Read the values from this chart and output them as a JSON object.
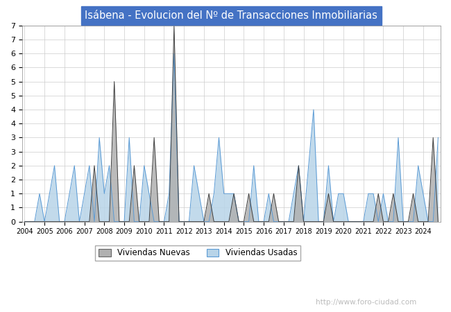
{
  "title": "Isábena - Evolucion del Nº de Transacciones Inmobiliarias",
  "title_color": "#ffffff",
  "title_bg_color": "#4472c4",
  "ylim": [
    0,
    7
  ],
  "ytick_vals": [
    0,
    0.5,
    1,
    1.5,
    2,
    2.5,
    3,
    3.5,
    4,
    4.5,
    5,
    5.5,
    6,
    6.5,
    7
  ],
  "ytick_labels": [
    "0",
    "1",
    "1",
    "2",
    "2",
    "3",
    "3",
    "4",
    "4",
    "5",
    "5",
    "6",
    "6",
    "7",
    "7"
  ],
  "color_nuevas": "#b0b0b0",
  "color_usadas": "#b8d4e8",
  "color_nuevas_line": "#404040",
  "color_usadas_line": "#5b9bd5",
  "watermark": "http://www.foro-ciudad.com",
  "legend_labels": [
    "Viviendas Nuevas",
    "Viviendas Usadas"
  ],
  "quarters_per_year": 4,
  "start_year": 2004,
  "end_year": 2024,
  "nuevas": [
    0,
    0,
    0,
    0,
    0,
    0,
    0,
    0,
    0,
    0,
    0,
    0,
    0,
    0,
    2,
    0,
    0,
    0,
    5,
    0,
    0,
    0,
    2,
    0,
    0,
    0,
    3,
    0,
    0,
    0,
    7,
    0,
    0,
    0,
    0,
    0,
    0,
    1,
    0,
    0,
    0,
    0,
    1,
    0,
    0,
    1,
    0,
    0,
    0,
    0,
    1,
    0,
    0,
    0,
    0,
    2,
    0,
    0,
    0,
    0,
    0,
    1,
    0,
    0,
    0,
    0,
    0,
    0,
    0,
    0,
    0,
    1,
    0,
    0,
    1,
    0,
    0,
    0,
    1,
    0,
    0,
    0,
    3,
    0
  ],
  "usadas": [
    0,
    0,
    0,
    1,
    0,
    1,
    2,
    0,
    0,
    1,
    2,
    0,
    1,
    2,
    0,
    3,
    1,
    2,
    0,
    0,
    0,
    3,
    0,
    0,
    2,
    1,
    0,
    0,
    0,
    1,
    6,
    0,
    0,
    0,
    2,
    1,
    0,
    0,
    1,
    3,
    1,
    1,
    1,
    0,
    0,
    0,
    2,
    0,
    0,
    1,
    0,
    0,
    0,
    0,
    1,
    2,
    0,
    2,
    4,
    0,
    0,
    2,
    0,
    1,
    1,
    0,
    0,
    0,
    0,
    1,
    1,
    0,
    1,
    0,
    0,
    3,
    0,
    0,
    0,
    2,
    1,
    0,
    0,
    3
  ]
}
